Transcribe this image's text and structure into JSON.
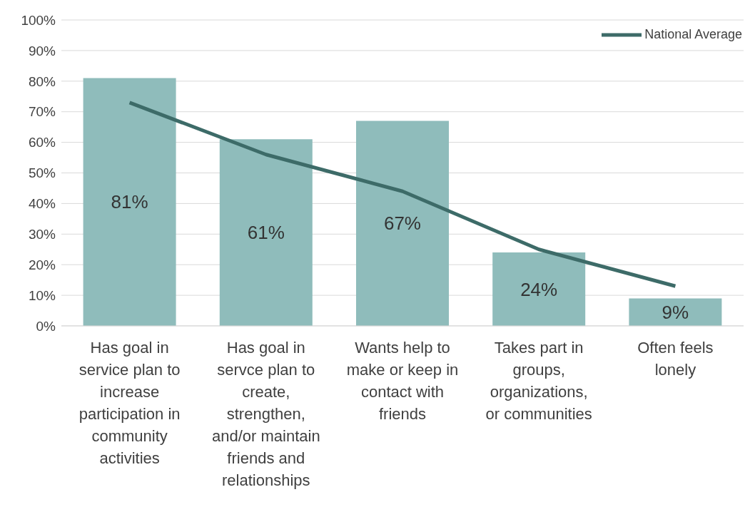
{
  "chart_data": {
    "type": "bar",
    "categories": [
      "Has goal in service plan to increase participation in community activities",
      "Has goal in servce plan to create, strengthen, and/or maintain friends and relationships",
      "Wants help to make or keep in contact with friends",
      "Takes part in groups, organizations, or communities",
      "Often feels lonely"
    ],
    "series": [
      {
        "color": "#8fbcbb",
        "values": [
          81,
          61,
          67,
          24,
          9
        ],
        "value_labels": [
          "81%",
          "61%",
          "67%",
          "24%",
          "9%"
        ]
      },
      {
        "type": "line",
        "name": "National Average",
        "color": "#3d6b68",
        "values": [
          73,
          56,
          44,
          25,
          13
        ]
      }
    ],
    "ylim": [
      0,
      100
    ],
    "yticks": [
      {
        "value": 0,
        "label": "0%"
      },
      {
        "value": 10,
        "label": "10%"
      },
      {
        "value": 20,
        "label": "20%"
      },
      {
        "value": 30,
        "label": "30%"
      },
      {
        "value": 40,
        "label": "40%"
      },
      {
        "value": 50,
        "label": "50%"
      },
      {
        "value": 60,
        "label": "60%"
      },
      {
        "value": 70,
        "label": "70%"
      },
      {
        "value": 80,
        "label": "80%"
      },
      {
        "value": 90,
        "label": "90%"
      },
      {
        "value": 100,
        "label": "100%"
      }
    ],
    "grid": "y",
    "legend": "top right",
    "marker": "none",
    "line_style": "solid"
  }
}
